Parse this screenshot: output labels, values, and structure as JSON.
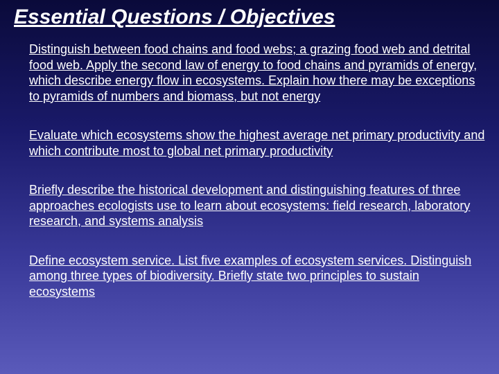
{
  "slide": {
    "title": "Essential Questions / Objectives",
    "title_fontsize": 30,
    "title_style": "bold italic underline",
    "background_gradient": {
      "stops": [
        "#0a0a3a",
        "#1a1a6a",
        "#3a3a9a",
        "#5a5aba"
      ]
    },
    "text_color": "#ffffff",
    "body_fontsize": 18,
    "objectives": [
      {
        "leading_plain": "Distinguish between food chains and food webs; a grazing food web and detrital food web. ",
        "underlined_remainder": "Apply the second law of energy to food chains and pyramids of energy, which describe energy flow in ecosystems. Explain how there may be exceptions to pyramids of numbers and biomass, but not energy"
      },
      {
        "text": "Evaluate which ecosystems show the highest average net primary productivity and which contribute most to global net primary productivity"
      },
      {
        "text": "Briefly describe the historical development and distinguishing features of three approaches ecologists use to learn about ecosystems: field research, laboratory research, and systems analysis"
      },
      {
        "text": "Define ecosystem service. List five examples of ecosystem services. Distinguish among three types of biodiversity. Briefly state two principles to sustain ecosystems"
      }
    ]
  }
}
